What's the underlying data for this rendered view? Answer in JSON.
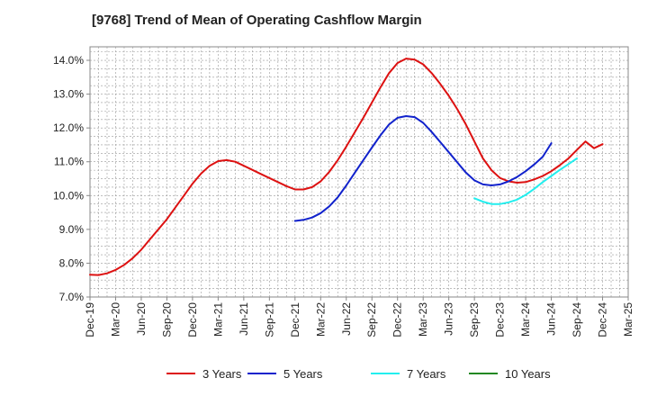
{
  "chart_data": {
    "type": "line",
    "title": "[9768]  Trend of Mean of Operating Cashflow Margin",
    "x_categories": [
      "Dec-19",
      "Mar-20",
      "Jun-20",
      "Sep-20",
      "Dec-20",
      "Mar-21",
      "Jun-21",
      "Sep-21",
      "Dec-21",
      "Mar-22",
      "Jun-22",
      "Sep-22",
      "Dec-22",
      "Mar-23",
      "Jun-23",
      "Sep-23",
      "Dec-23",
      "Mar-24",
      "Jun-24",
      "Sep-24",
      "Dec-24",
      "Mar-25"
    ],
    "y_ticks": [
      "7.0%",
      "8.0%",
      "9.0%",
      "10.0%",
      "11.0%",
      "12.0%",
      "13.0%",
      "14.0%"
    ],
    "ylim": [
      7.0,
      14.4
    ],
    "grid": true,
    "legend_position": "bottom",
    "series": [
      {
        "name": "3 Years",
        "color": "#dd1111",
        "points": [
          [
            "Dec-19",
            7.66
          ],
          [
            "Jan-20",
            7.65
          ],
          [
            "Feb-20",
            7.7
          ],
          [
            "Mar-20",
            7.8
          ],
          [
            "Apr-20",
            7.95
          ],
          [
            "May-20",
            8.15
          ],
          [
            "Jun-20",
            8.4
          ],
          [
            "Jul-20",
            8.7
          ],
          [
            "Aug-20",
            9.0
          ],
          [
            "Sep-20",
            9.3
          ],
          [
            "Oct-20",
            9.65
          ],
          [
            "Nov-20",
            10.0
          ],
          [
            "Dec-20",
            10.35
          ],
          [
            "Jan-21",
            10.65
          ],
          [
            "Feb-21",
            10.88
          ],
          [
            "Mar-21",
            11.02
          ],
          [
            "Apr-21",
            11.05
          ],
          [
            "May-21",
            11.0
          ],
          [
            "Jun-21",
            10.88
          ],
          [
            "Jul-21",
            10.76
          ],
          [
            "Aug-21",
            10.64
          ],
          [
            "Sep-21",
            10.52
          ],
          [
            "Oct-21",
            10.4
          ],
          [
            "Nov-21",
            10.28
          ],
          [
            "Dec-21",
            10.18
          ],
          [
            "Jan-22",
            10.18
          ],
          [
            "Feb-22",
            10.25
          ],
          [
            "Mar-22",
            10.42
          ],
          [
            "Apr-22",
            10.7
          ],
          [
            "May-22",
            11.05
          ],
          [
            "Jun-22",
            11.45
          ],
          [
            "Jul-22",
            11.88
          ],
          [
            "Aug-22",
            12.3
          ],
          [
            "Sep-22",
            12.75
          ],
          [
            "Oct-22",
            13.2
          ],
          [
            "Nov-22",
            13.62
          ],
          [
            "Dec-22",
            13.92
          ],
          [
            "Jan-23",
            14.05
          ],
          [
            "Feb-23",
            14.02
          ],
          [
            "Mar-23",
            13.88
          ],
          [
            "Apr-23",
            13.62
          ],
          [
            "May-23",
            13.3
          ],
          [
            "Jun-23",
            12.95
          ],
          [
            "Jul-23",
            12.55
          ],
          [
            "Aug-23",
            12.1
          ],
          [
            "Sep-23",
            11.6
          ],
          [
            "Oct-23",
            11.1
          ],
          [
            "Nov-23",
            10.75
          ],
          [
            "Dec-23",
            10.52
          ],
          [
            "Jan-24",
            10.42
          ],
          [
            "Feb-24",
            10.38
          ],
          [
            "Mar-24",
            10.4
          ],
          [
            "Apr-24",
            10.48
          ],
          [
            "May-24",
            10.58
          ],
          [
            "Jun-24",
            10.72
          ],
          [
            "Jul-24",
            10.9
          ],
          [
            "Aug-24",
            11.1
          ],
          [
            "Sep-24",
            11.35
          ],
          [
            "Oct-24",
            11.6
          ],
          [
            "Nov-24",
            11.4
          ],
          [
            "Dec-24",
            11.52
          ]
        ]
      },
      {
        "name": "5 Years",
        "color": "#1122cc",
        "points": [
          [
            "Dec-21",
            9.25
          ],
          [
            "Jan-22",
            9.28
          ],
          [
            "Feb-22",
            9.35
          ],
          [
            "Mar-22",
            9.48
          ],
          [
            "Apr-22",
            9.68
          ],
          [
            "May-22",
            9.95
          ],
          [
            "Jun-22",
            10.3
          ],
          [
            "Jul-22",
            10.68
          ],
          [
            "Aug-22",
            11.05
          ],
          [
            "Sep-22",
            11.42
          ],
          [
            "Oct-22",
            11.78
          ],
          [
            "Nov-22",
            12.1
          ],
          [
            "Dec-22",
            12.3
          ],
          [
            "Jan-23",
            12.35
          ],
          [
            "Feb-23",
            12.32
          ],
          [
            "Mar-23",
            12.15
          ],
          [
            "Apr-23",
            11.88
          ],
          [
            "May-23",
            11.58
          ],
          [
            "Jun-23",
            11.28
          ],
          [
            "Jul-23",
            10.98
          ],
          [
            "Aug-23",
            10.68
          ],
          [
            "Sep-23",
            10.45
          ],
          [
            "Oct-23",
            10.33
          ],
          [
            "Nov-23",
            10.3
          ],
          [
            "Dec-23",
            10.33
          ],
          [
            "Jan-24",
            10.42
          ],
          [
            "Feb-24",
            10.55
          ],
          [
            "Mar-24",
            10.72
          ],
          [
            "Apr-24",
            10.92
          ],
          [
            "May-24",
            11.15
          ],
          [
            "Jun-24",
            11.55
          ]
        ]
      },
      {
        "name": "7 Years",
        "color": "#22eeee",
        "points": [
          [
            "Sep-23",
            9.92
          ],
          [
            "Oct-23",
            9.82
          ],
          [
            "Nov-23",
            9.75
          ],
          [
            "Dec-23",
            9.75
          ],
          [
            "Jan-24",
            9.8
          ],
          [
            "Feb-24",
            9.88
          ],
          [
            "Mar-24",
            10.02
          ],
          [
            "Apr-24",
            10.2
          ],
          [
            "May-24",
            10.4
          ],
          [
            "Jun-24",
            10.58
          ],
          [
            "Jul-24",
            10.76
          ],
          [
            "Aug-24",
            10.93
          ],
          [
            "Sep-24",
            11.1
          ]
        ]
      },
      {
        "name": "10 Years",
        "color": "#228822",
        "points": []
      }
    ]
  }
}
